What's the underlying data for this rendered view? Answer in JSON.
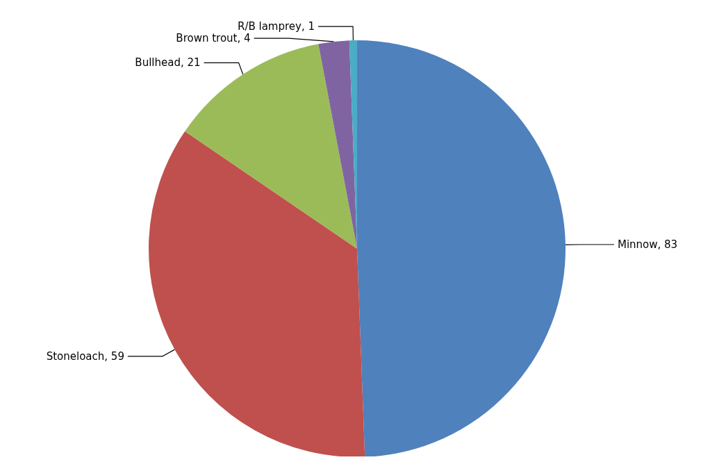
{
  "chart_data": {
    "type": "pie",
    "categories": [
      "Minnow",
      "Stoneloach",
      "Bullhead",
      "Brown trout",
      "R/B lamprey"
    ],
    "values": [
      83,
      59,
      21,
      4,
      1
    ],
    "value_labels": [
      ", 83",
      ", 59",
      ", 21",
      ", 4",
      ", 1"
    ],
    "colors": [
      "#4f81bd",
      "#c0504d",
      "#9bbb59",
      "#8064a2",
      "#4bacc6"
    ],
    "legend": false
  }
}
